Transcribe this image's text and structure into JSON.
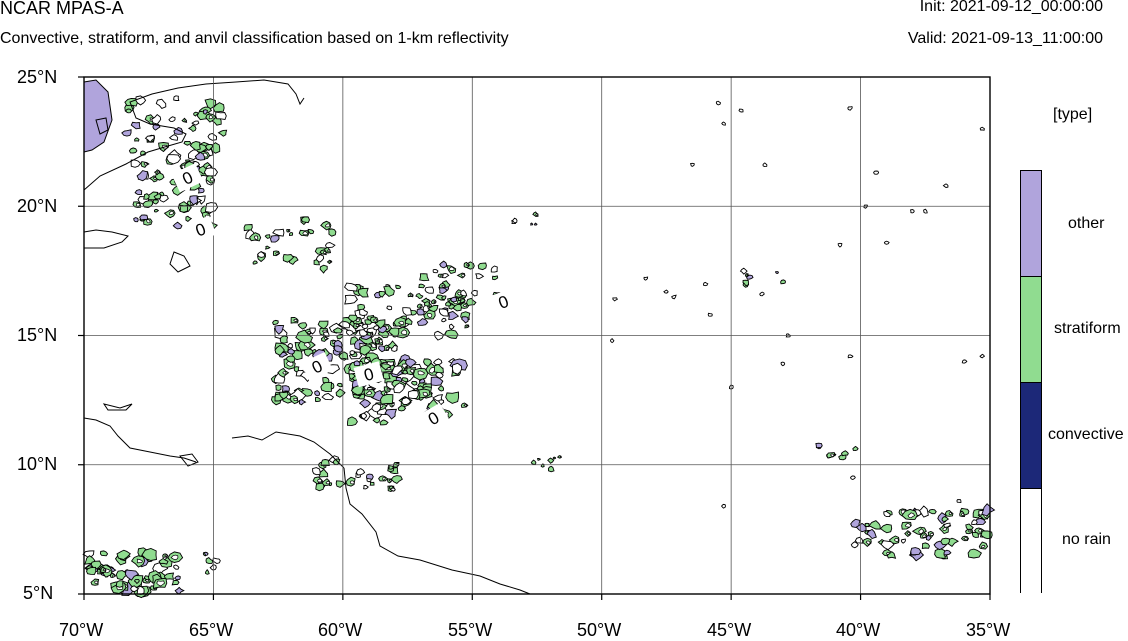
{
  "header": {
    "model": "NCAR MPAS-A",
    "subtitle": "Convective, stratiform, and anvil classification based on 1-km reflectivity",
    "init": "Init: 2021-09-12_00:00:00",
    "valid": "Valid: 2021-09-13_11:00:00"
  },
  "map": {
    "lon_ticks": [
      "70°W",
      "65°W",
      "60°W",
      "55°W",
      "50°W",
      "45°W",
      "40°W",
      "35°W"
    ],
    "lat_ticks": [
      "25°N",
      "20°N",
      "15°N",
      "10°N",
      "5°N"
    ],
    "lon_range": [
      -70,
      -35
    ],
    "lat_range": [
      5,
      25
    ],
    "contour_labels": [
      "0",
      "0",
      "0",
      "0",
      "0",
      "0"
    ]
  },
  "legend": {
    "title": "[type]",
    "items": [
      {
        "label": "other",
        "color": "#b0a4dc"
      },
      {
        "label": "stratiform",
        "color": "#90dc90"
      },
      {
        "label": "convective",
        "color": "#1c2878"
      },
      {
        "label": "no rain",
        "color": "#ffffff"
      }
    ]
  }
}
